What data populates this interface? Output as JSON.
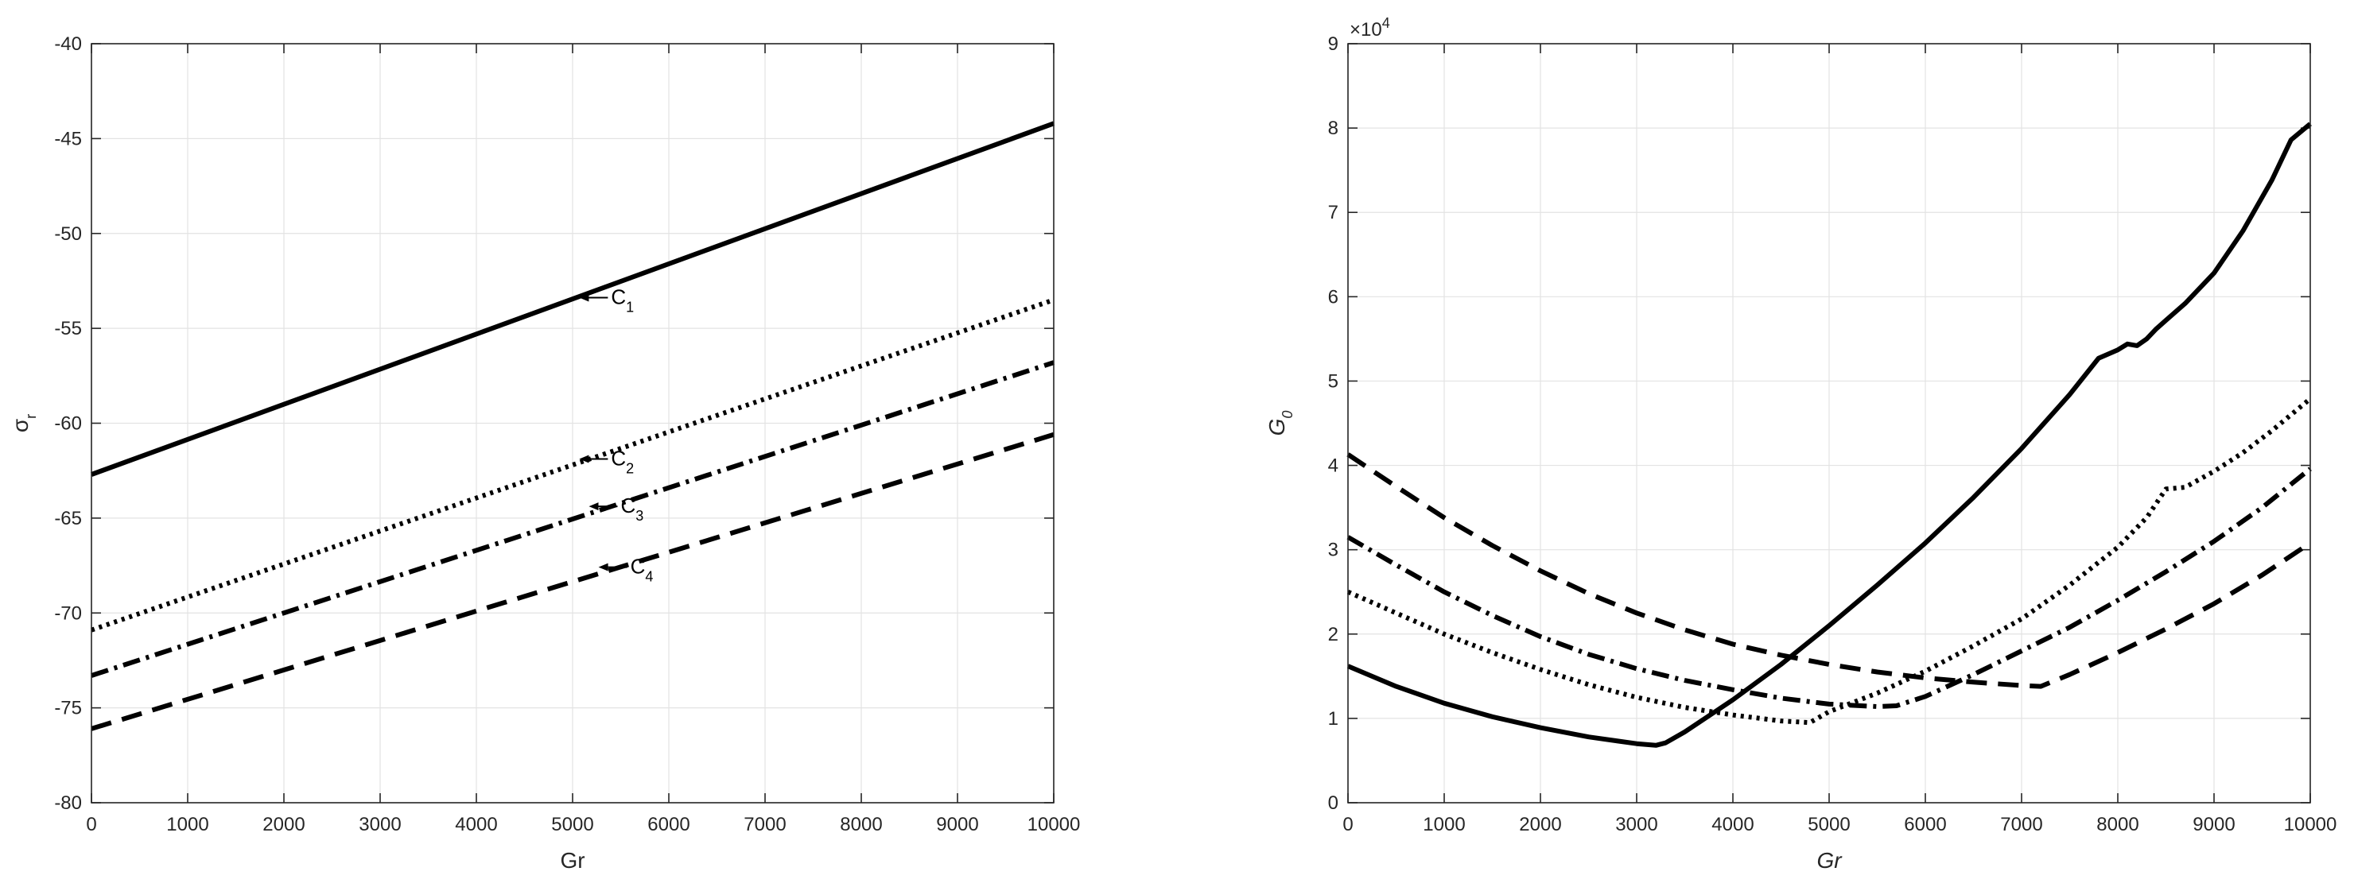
{
  "chart_data": [
    {
      "type": "line",
      "title": "",
      "xlabel": "Gr",
      "ylabel": "σ",
      "ylabel_sub": "r",
      "xlim": [
        0,
        10000
      ],
      "ylim": [
        -80,
        -40
      ],
      "xticks": [
        0,
        1000,
        2000,
        3000,
        4000,
        5000,
        6000,
        7000,
        8000,
        9000,
        10000
      ],
      "yticks": [
        -80,
        -75,
        -70,
        -65,
        -60,
        -55,
        -50,
        -45,
        -40
      ],
      "grid": true,
      "legend": "none",
      "series": [
        {
          "style": "solid",
          "x": [
            0,
            10000
          ],
          "y": [
            -62.7,
            -44.2
          ],
          "annotation": {
            "text": "C",
            "sub": "1",
            "x": 5400,
            "y": -53.3
          }
        },
        {
          "style": "dotted",
          "x": [
            0,
            10000
          ],
          "y": [
            -70.9,
            -53.5
          ],
          "annotation": {
            "text": "C",
            "sub": "2",
            "x": 5400,
            "y": -61.8
          }
        },
        {
          "style": "dashdot",
          "x": [
            0,
            10000
          ],
          "y": [
            -73.3,
            -56.8
          ],
          "annotation": {
            "text": "C",
            "sub": "3",
            "x": 5500,
            "y": -64.3
          }
        },
        {
          "style": "dashed",
          "x": [
            0,
            10000
          ],
          "y": [
            -76.1,
            -60.6
          ],
          "annotation": {
            "text": "C",
            "sub": "4",
            "x": 5600,
            "y": -67.5
          }
        }
      ]
    },
    {
      "type": "line",
      "title": "",
      "xlabel": "Gr",
      "ylabel": "G",
      "ylabel_sub": "0",
      "label_style": "italic",
      "scale_label": "×10",
      "scale_exponent": "4",
      "xlim": [
        0,
        10000
      ],
      "ylim": [
        0,
        9
      ],
      "xticks": [
        0,
        1000,
        2000,
        3000,
        4000,
        5000,
        6000,
        7000,
        8000,
        9000,
        10000
      ],
      "yticks": [
        0,
        1,
        2,
        3,
        4,
        5,
        6,
        7,
        8,
        9
      ],
      "grid": true,
      "legend": "none",
      "series": [
        {
          "style": "solid",
          "x": [
            0,
            500,
            1000,
            1500,
            2000,
            2500,
            3000,
            3200,
            3300,
            3500,
            4000,
            4500,
            5000,
            5500,
            6000,
            6500,
            7000,
            7500,
            7800,
            8000,
            8100,
            8200,
            8300,
            8400,
            8500,
            8700,
            9000,
            9300,
            9600,
            9800,
            10000
          ],
          "y": [
            1.62,
            1.38,
            1.18,
            1.02,
            0.89,
            0.78,
            0.7,
            0.68,
            0.71,
            0.84,
            1.22,
            1.64,
            2.1,
            2.58,
            3.08,
            3.62,
            4.2,
            4.84,
            5.27,
            5.37,
            5.44,
            5.42,
            5.5,
            5.62,
            5.72,
            5.92,
            6.28,
            6.78,
            7.38,
            7.86,
            8.05
          ]
        },
        {
          "style": "dotted",
          "x": [
            0,
            500,
            1000,
            1500,
            2000,
            2500,
            3000,
            3500,
            4000,
            4500,
            4800,
            5000,
            5500,
            6000,
            6500,
            7000,
            7500,
            8000,
            8300,
            8500,
            8700,
            9000,
            9300,
            9600,
            10000
          ],
          "y": [
            2.5,
            2.25,
            2.0,
            1.78,
            1.58,
            1.4,
            1.25,
            1.13,
            1.04,
            0.97,
            0.95,
            1.08,
            1.3,
            1.56,
            1.86,
            2.18,
            2.58,
            3.03,
            3.38,
            3.72,
            3.74,
            3.93,
            4.15,
            4.41,
            4.79
          ]
        },
        {
          "style": "dashdot",
          "x": [
            0,
            500,
            1000,
            1500,
            2000,
            2500,
            3000,
            3500,
            4000,
            4500,
            5000,
            5500,
            5700,
            6000,
            6500,
            7000,
            7500,
            8000,
            8500,
            9000,
            9500,
            10000
          ],
          "y": [
            3.15,
            2.82,
            2.5,
            2.22,
            1.97,
            1.76,
            1.59,
            1.45,
            1.34,
            1.24,
            1.17,
            1.14,
            1.15,
            1.26,
            1.52,
            1.8,
            2.08,
            2.4,
            2.74,
            3.1,
            3.5,
            3.96
          ]
        },
        {
          "style": "dashed",
          "x": [
            0,
            500,
            1000,
            1500,
            2000,
            2500,
            3000,
            3500,
            4000,
            4500,
            5000,
            5500,
            6000,
            6500,
            7000,
            7200,
            7500,
            8000,
            8500,
            9000,
            9500,
            10000
          ],
          "y": [
            4.13,
            3.75,
            3.38,
            3.05,
            2.75,
            2.48,
            2.25,
            2.05,
            1.88,
            1.75,
            1.64,
            1.55,
            1.48,
            1.43,
            1.39,
            1.38,
            1.52,
            1.78,
            2.06,
            2.36,
            2.7,
            3.08
          ]
        }
      ]
    }
  ]
}
